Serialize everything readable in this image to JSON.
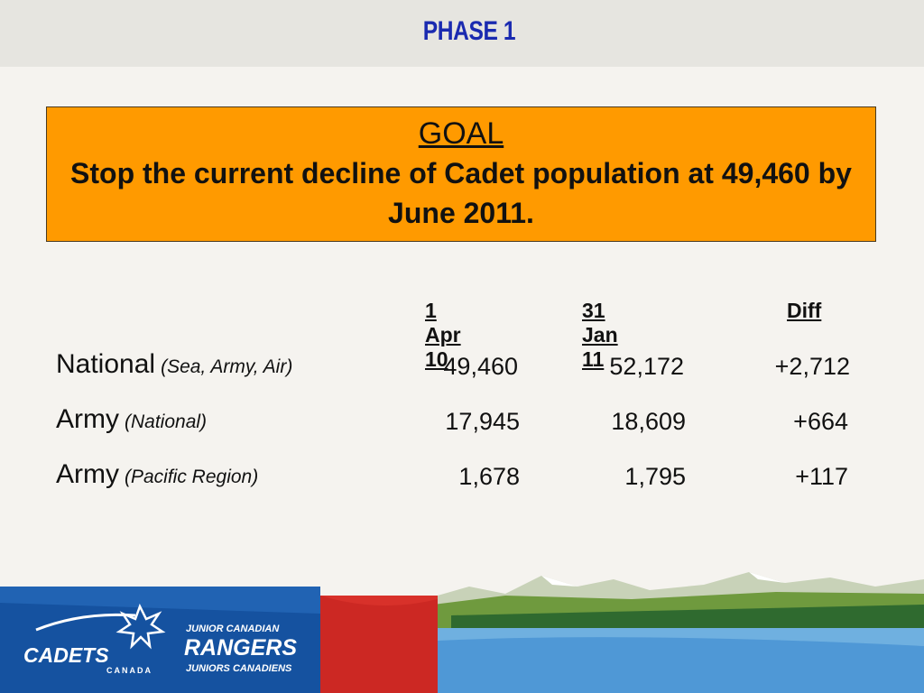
{
  "header": {
    "title": "PHASE 1"
  },
  "goal": {
    "heading": "GOAL",
    "text": "Stop the current decline of Cadet population at 49,460 by June 2011."
  },
  "table": {
    "columns": [
      "1 Apr 10",
      "31 Jan 11",
      "Diff"
    ],
    "rows": [
      {
        "label": "National",
        "sub": "(Sea, Army, Air)",
        "values": [
          "49,460",
          "52,172",
          "+2,712"
        ]
      },
      {
        "label": "Army",
        "sub": "(National)",
        "values": [
          "17,945",
          "18,609",
          "+664"
        ]
      },
      {
        "label": "Army",
        "sub": "(Pacific Region)",
        "values": [
          "1,678",
          "1,795",
          "+117"
        ]
      }
    ]
  },
  "footer": {
    "cadets_logo": {
      "line1": "CADETS",
      "line2": "CANADA"
    },
    "rangers_logo": {
      "line1": "JUNIOR CANADIAN",
      "line2": "RANGERS",
      "line3": "JUNIORS CANADIENS"
    }
  },
  "colors": {
    "title": "#1a2ab0",
    "goal_box": "#ff9a00",
    "header_bg": "#e6e5e0",
    "footer_blue": "#1552a0",
    "footer_red": "#d8312a"
  }
}
